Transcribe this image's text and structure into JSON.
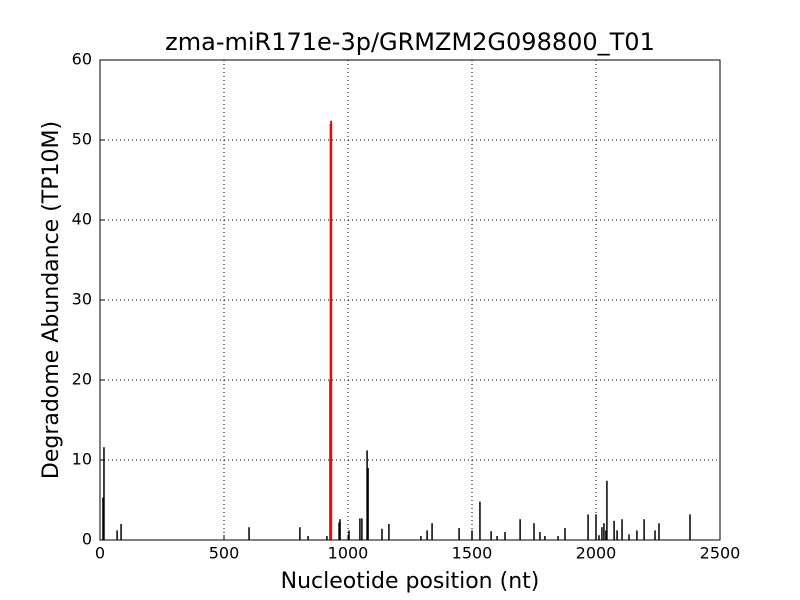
{
  "chart_data": {
    "type": "spike",
    "title": "zma-miR171e-3p/GRMZM2G098800_T01",
    "x_label": "Nucleotide position (nt)",
    "y_label": "Degradome Abundance (TP10M)",
    "xlim": [
      0,
      2500
    ],
    "xticks": [
      0,
      500,
      1000,
      1500,
      2000,
      2500
    ],
    "ylim": [
      0,
      60
    ],
    "yticks": [
      0,
      10,
      20,
      30,
      40,
      50,
      60
    ],
    "grid": true,
    "series": [
      {
        "color": "#000000",
        "x": [
          12,
          16,
          69,
          85,
          601,
          806,
          839,
          915,
          964,
          968,
          1004,
          1048,
          1056,
          1077,
          1081,
          1137,
          1165,
          1294,
          1319,
          1339,
          1448,
          1500,
          1532,
          1577,
          1601,
          1633,
          1694,
          1750,
          1774,
          1794,
          1847,
          1875,
          1968,
          2000,
          2012,
          2024,
          2032,
          2040,
          2044,
          2073,
          2085,
          2105,
          2133,
          2165,
          2194,
          2238,
          2254,
          2379
        ],
        "values": [
          5.3,
          11.6,
          1.2,
          2.0,
          1.6,
          1.6,
          0.5,
          0.5,
          2.2,
          2.6,
          1.2,
          2.7,
          2.7,
          11.2,
          9.0,
          1.4,
          2.0,
          0.5,
          1.2,
          2.1,
          1.5,
          1.2,
          4.8,
          1.1,
          0.5,
          1.0,
          2.6,
          2.1,
          1.0,
          0.5,
          0.5,
          1.5,
          3.2,
          3.2,
          0.6,
          1.6,
          2.1,
          1.2,
          7.4,
          2.4,
          1.2,
          2.6,
          0.7,
          1.2,
          2.6,
          1.2,
          2.1,
          3.2
        ]
      },
      {
        "color": "#ff0000",
        "x": [
          928,
          930,
          932
        ],
        "values": [
          20,
          52.0,
          52.4
        ]
      }
    ]
  }
}
